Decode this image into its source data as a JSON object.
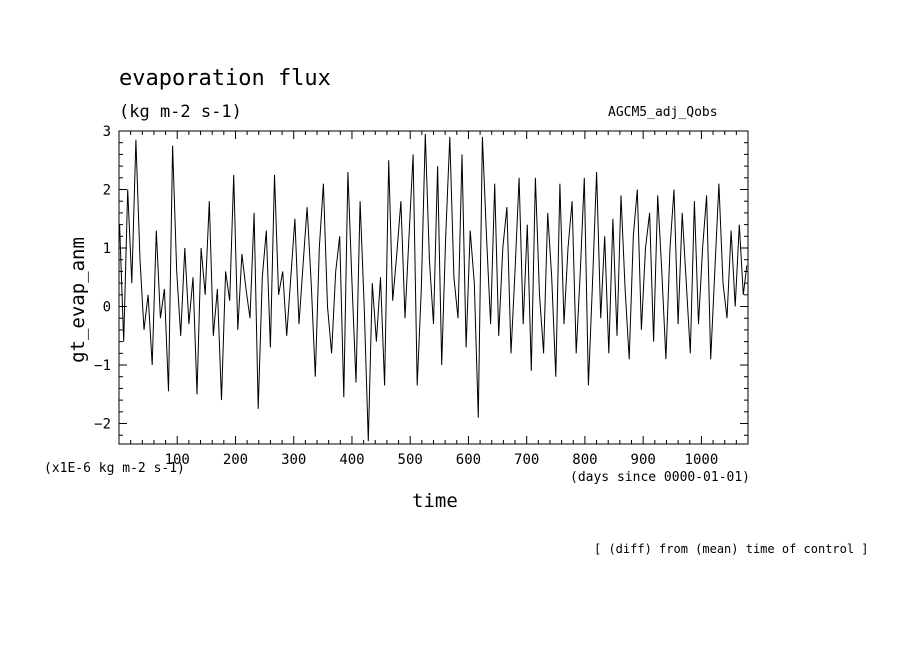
{
  "header": {
    "title": "evaporation flux",
    "units": "(kg m-2 s-1)",
    "experiment": "AGCM5_adj_Qobs"
  },
  "axes": {
    "ylabel": "gt_evap_anm",
    "yscale_note": "(x1E-6 kg m-2 s-1)",
    "xlabel": "time",
    "xunits": "(days since 0000-01-01)"
  },
  "footer": {
    "note": "[ (diff) from (mean) time of control ]"
  },
  "chart_data": {
    "type": "line",
    "title": "evaporation flux",
    "xlabel": "time",
    "ylabel": "gt_evap_anm",
    "xlim": [
      0,
      1080
    ],
    "ylim": [
      -2.35,
      3.0
    ],
    "xticks": [
      100,
      200,
      300,
      400,
      500,
      600,
      700,
      800,
      900,
      1000
    ],
    "yticks": [
      -2,
      -1,
      0,
      1,
      2,
      3
    ],
    "grid": false,
    "line_color": "#000000",
    "series": [
      {
        "x": [
          1,
          8,
          15,
          22,
          29,
          36,
          43,
          50,
          57,
          64,
          71,
          78,
          85,
          92,
          99,
          106,
          113,
          120,
          127,
          134,
          141,
          148,
          155,
          162,
          169,
          176,
          183,
          190,
          197,
          204,
          211,
          218,
          225,
          232,
          239,
          246,
          253,
          260,
          267,
          274,
          281,
          288,
          295,
          302,
          309,
          316,
          323,
          330,
          337,
          344,
          351,
          358,
          365,
          372,
          379,
          386,
          393,
          400,
          407,
          414,
          421,
          428,
          435,
          442,
          449,
          456,
          463,
          470,
          477,
          484,
          491,
          498,
          505,
          512,
          519,
          526,
          533,
          540,
          547,
          554,
          561,
          568,
          575,
          582,
          589,
          596,
          603,
          610,
          617,
          624,
          631,
          638,
          645,
          652,
          659,
          666,
          673,
          680,
          687,
          694,
          701,
          708,
          715,
          722,
          729,
          736,
          743,
          750,
          757,
          764,
          771,
          778,
          785,
          792,
          799,
          806,
          813,
          820,
          827,
          834,
          841,
          848,
          855,
          862,
          869,
          876,
          883,
          890,
          897,
          904,
          911,
          918,
          925,
          932,
          939,
          946,
          953,
          960,
          967,
          974,
          981,
          988,
          995,
          1002,
          1009,
          1016,
          1023,
          1030,
          1037,
          1044,
          1051,
          1058,
          1065,
          1072,
          1078
        ],
        "values": [
          1.4,
          -0.6,
          2.0,
          0.4,
          2.85,
          0.8,
          -0.4,
          0.2,
          -1.0,
          1.3,
          -0.2,
          0.3,
          -1.45,
          2.75,
          0.6,
          -0.5,
          1.0,
          -0.3,
          0.5,
          -1.5,
          1.0,
          0.2,
          1.8,
          -0.5,
          0.3,
          -1.6,
          0.6,
          0.1,
          2.25,
          -0.4,
          0.9,
          0.3,
          -0.2,
          1.6,
          -1.75,
          0.5,
          1.3,
          -0.7,
          2.25,
          0.2,
          0.6,
          -0.5,
          0.5,
          1.5,
          -0.3,
          0.7,
          1.7,
          0.4,
          -1.2,
          1.0,
          2.1,
          0.0,
          -0.8,
          0.6,
          1.2,
          -1.55,
          2.3,
          0.4,
          -1.3,
          1.8,
          0.0,
          -2.3,
          0.4,
          -0.6,
          0.5,
          -1.35,
          2.5,
          0.1,
          0.9,
          1.8,
          -0.2,
          1.2,
          2.6,
          -1.35,
          0.3,
          2.95,
          0.8,
          -0.3,
          2.4,
          -1.0,
          1.2,
          2.9,
          0.5,
          -0.2,
          2.6,
          -0.7,
          1.3,
          0.4,
          -1.9,
          2.9,
          1.2,
          -0.3,
          2.1,
          -0.5,
          1.0,
          1.7,
          -0.8,
          0.6,
          2.2,
          -0.3,
          1.4,
          -1.1,
          2.2,
          0.2,
          -0.8,
          1.6,
          0.5,
          -1.2,
          2.1,
          -0.3,
          1.0,
          1.8,
          -0.8,
          0.6,
          2.2,
          -1.35,
          0.4,
          2.3,
          -0.2,
          1.2,
          -0.8,
          1.5,
          -0.5,
          1.9,
          0.3,
          -0.9,
          1.2,
          2.0,
          -0.4,
          1.0,
          1.6,
          -0.6,
          1.9,
          0.6,
          -0.9,
          1.0,
          2.0,
          -0.3,
          1.6,
          0.4,
          -0.8,
          1.8,
          -0.3,
          1.0,
          1.9,
          -0.9,
          0.6,
          2.1,
          0.4,
          -0.2,
          1.3,
          0.0,
          1.4,
          0.2,
          0.7
        ]
      }
    ]
  }
}
